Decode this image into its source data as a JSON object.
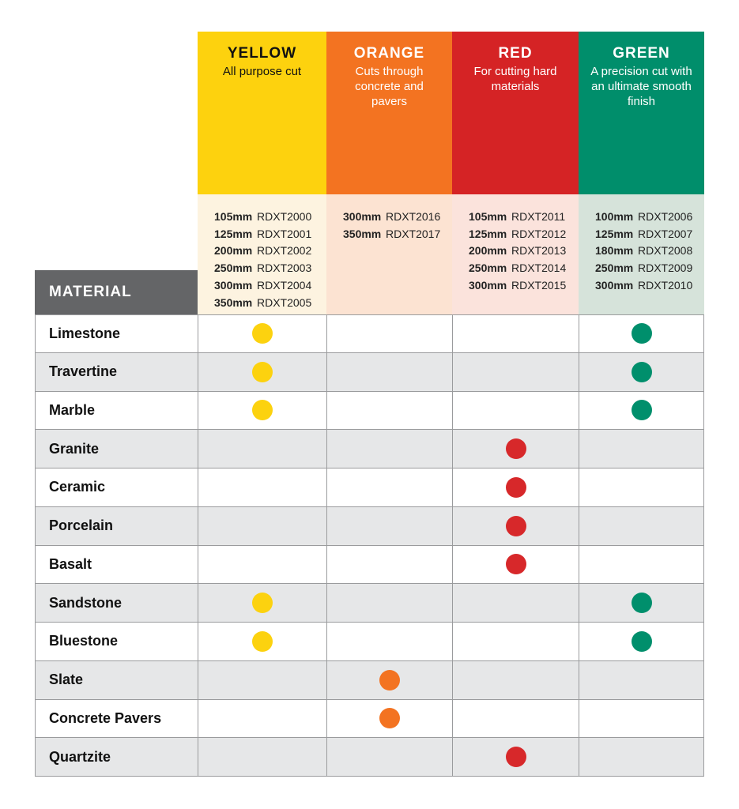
{
  "columns": [
    {
      "title": "YELLOW",
      "desc": "All purpose cut",
      "color": "#fdd20e",
      "dot": "#fcd20f",
      "text": "#111111",
      "bg": "#fdf3e0",
      "products": [
        [
          "105mm",
          "RDXT2000"
        ],
        [
          "125mm",
          "RDXT2001"
        ],
        [
          "200mm",
          "RDXT2002"
        ],
        [
          "250mm",
          "RDXT2003"
        ],
        [
          "300mm",
          "RDXT2004"
        ],
        [
          "350mm",
          "RDXT2005"
        ]
      ]
    },
    {
      "title": "ORANGE",
      "desc": "Cuts through concrete and pavers",
      "color": "#f37321",
      "dot": "#f37321",
      "text": "#ffffff",
      "bg": "#fce3d2",
      "products": [
        [
          "300mm",
          "RDXT2016"
        ],
        [
          "350mm",
          "RDXT2017"
        ]
      ]
    },
    {
      "title": "RED",
      "desc": "For cutting hard materials",
      "color": "#d52325",
      "dot": "#d7282a",
      "text": "#ffffff",
      "bg": "#fbe3dc",
      "products": [
        [
          "105mm",
          "RDXT2011"
        ],
        [
          "125mm",
          "RDXT2012"
        ],
        [
          "200mm",
          "RDXT2013"
        ],
        [
          "250mm",
          "RDXT2014"
        ],
        [
          "300mm",
          "RDXT2015"
        ]
      ]
    },
    {
      "title": "GREEN",
      "desc": "A precision cut with an ultimate smooth finish",
      "color": "#008e6b",
      "dot": "#008f6c",
      "text": "#ffffff",
      "bg": "#d6e3da",
      "products": [
        [
          "100mm",
          "RDXT2006"
        ],
        [
          "125mm",
          "RDXT2007"
        ],
        [
          "180mm",
          "RDXT2008"
        ],
        [
          "250mm",
          "RDXT2009"
        ],
        [
          "300mm",
          "RDXT2010"
        ]
      ]
    }
  ],
  "material_header": "MATERIAL",
  "materials": [
    {
      "name": "Limestone",
      "uses": [
        "YELLOW",
        "GREEN"
      ]
    },
    {
      "name": "Travertine",
      "uses": [
        "YELLOW",
        "GREEN"
      ]
    },
    {
      "name": "Marble",
      "uses": [
        "YELLOW",
        "GREEN"
      ]
    },
    {
      "name": "Granite",
      "uses": [
        "RED"
      ]
    },
    {
      "name": "Ceramic",
      "uses": [
        "RED"
      ]
    },
    {
      "name": "Porcelain",
      "uses": [
        "RED"
      ]
    },
    {
      "name": "Basalt",
      "uses": [
        "RED"
      ]
    },
    {
      "name": "Sandstone",
      "uses": [
        "YELLOW",
        "GREEN"
      ]
    },
    {
      "name": "Bluestone",
      "uses": [
        "YELLOW",
        "GREEN"
      ]
    },
    {
      "name": "Slate",
      "uses": [
        "ORANGE"
      ]
    },
    {
      "name": "Concrete Pavers",
      "uses": [
        "ORANGE"
      ]
    },
    {
      "name": "Quartzite",
      "uses": [
        "RED"
      ]
    }
  ]
}
